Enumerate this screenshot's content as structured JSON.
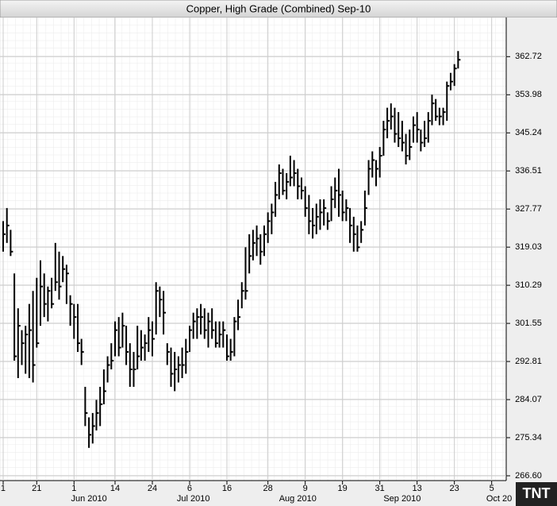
{
  "chart_data": {
    "type": "ohlc",
    "title": "Copper, High Grade (Combined) Sep-10",
    "logo": "TNT",
    "color": "#000000",
    "grid": true,
    "ylim": [
      265.5,
      371.7
    ],
    "yticks": [
      {
        "value": 266.6,
        "label": "266.60"
      },
      {
        "value": 275.34,
        "label": "275.34"
      },
      {
        "value": 284.07,
        "label": "284.07"
      },
      {
        "value": 292.81,
        "label": "292.81"
      },
      {
        "value": 301.55,
        "label": "301.55"
      },
      {
        "value": 310.29,
        "label": "310.29"
      },
      {
        "value": 319.03,
        "label": "319.03"
      },
      {
        "value": 327.77,
        "label": "327.77"
      },
      {
        "value": 336.51,
        "label": "336.51"
      },
      {
        "value": 345.24,
        "label": "345.24"
      },
      {
        "value": 353.98,
        "label": "353.98"
      },
      {
        "value": 362.72,
        "label": "362.72"
      }
    ],
    "xlim": [
      -0.85,
      134.9
    ],
    "xticks": [
      {
        "value": 0,
        "label": "1"
      },
      {
        "value": 9,
        "label": "21"
      },
      {
        "value": 19,
        "label": "1"
      },
      {
        "value": 30,
        "label": "14"
      },
      {
        "value": 40,
        "label": "24"
      },
      {
        "value": 50,
        "label": "6"
      },
      {
        "value": 60,
        "label": "16"
      },
      {
        "value": 71,
        "label": "28"
      },
      {
        "value": 81,
        "label": "9"
      },
      {
        "value": 91,
        "label": "19"
      },
      {
        "value": 101,
        "label": "31"
      },
      {
        "value": 111,
        "label": "13"
      },
      {
        "value": 121,
        "label": "23"
      },
      {
        "value": 131,
        "label": "5"
      }
    ],
    "month_labels": [
      {
        "value": 23,
        "label": "Jun 2010"
      },
      {
        "value": 51,
        "label": "Jul 2010"
      },
      {
        "value": 79,
        "label": "Aug 2010"
      },
      {
        "value": 107,
        "label": "Sep 2010"
      },
      {
        "value": 133,
        "label": "Oct 20"
      }
    ],
    "x": [
      0,
      1,
      2,
      3,
      4,
      5,
      6,
      7,
      8,
      9,
      10,
      11,
      12,
      13,
      14,
      15,
      16,
      17,
      18,
      19,
      20,
      21,
      22,
      23,
      24,
      25,
      26,
      27,
      28,
      29,
      30,
      31,
      32,
      33,
      34,
      35,
      36,
      37,
      38,
      39,
      40,
      41,
      42,
      43,
      44,
      45,
      46,
      47,
      48,
      49,
      50,
      51,
      52,
      53,
      54,
      55,
      56,
      57,
      58,
      59,
      60,
      61,
      62,
      63,
      64,
      65,
      66,
      67,
      68,
      69,
      70,
      71,
      72,
      73,
      74,
      75,
      76,
      77,
      78,
      79,
      80,
      81,
      82,
      83,
      84,
      85,
      86,
      87,
      88,
      89,
      90,
      91,
      92,
      93,
      94,
      95,
      96,
      97,
      98,
      99,
      100,
      101,
      102,
      103,
      104,
      105,
      106,
      107,
      108,
      109,
      110,
      111,
      112,
      113,
      114,
      115,
      116,
      117,
      118,
      119,
      120,
      121,
      122
    ],
    "high": [
      325,
      328,
      323,
      313,
      305,
      300,
      301,
      306,
      309,
      312,
      316,
      313,
      310,
      312,
      320,
      318,
      317,
      315,
      308,
      306,
      306,
      298,
      287,
      280,
      281,
      284,
      287,
      291,
      294,
      297,
      302,
      303,
      304,
      301,
      297,
      295,
      301,
      300,
      299,
      303,
      302,
      311,
      310,
      309,
      297,
      296,
      295,
      294,
      296,
      298,
      301,
      304,
      305,
      306,
      305,
      304,
      305,
      302,
      302,
      302,
      299,
      298,
      303,
      307,
      311,
      319,
      322,
      323,
      324,
      322,
      324,
      327,
      329,
      334,
      338,
      337,
      336,
      340,
      339,
      337,
      335,
      333,
      331,
      328,
      329,
      330,
      330,
      327,
      333,
      335,
      337,
      332,
      330,
      328,
      326,
      324,
      325,
      332,
      339,
      341,
      339,
      342,
      348,
      351,
      352,
      351,
      350,
      348,
      345,
      346,
      349,
      350,
      346,
      348,
      350,
      354,
      353,
      351,
      351,
      357,
      359,
      361,
      364
    ],
    "low": [
      318,
      320,
      317,
      293,
      289,
      292,
      290,
      289,
      288,
      296,
      301,
      303,
      302,
      305,
      309,
      307,
      311,
      306,
      301,
      298,
      295,
      292,
      278,
      273,
      274,
      277,
      278,
      283,
      288,
      291,
      294,
      294,
      296,
      292,
      287,
      287,
      291,
      293,
      293,
      295,
      294,
      299,
      303,
      299,
      292,
      287,
      286,
      288,
      289,
      290,
      295,
      298,
      298,
      299,
      298,
      296,
      298,
      296,
      296,
      296,
      293,
      293,
      294,
      300,
      305,
      307,
      313,
      316,
      317,
      315,
      317,
      320,
      322,
      326,
      330,
      331,
      330,
      333,
      333,
      330,
      330,
      326,
      322,
      321,
      322,
      323,
      324,
      323,
      325,
      328,
      326,
      325,
      325,
      320,
      318,
      318,
      320,
      324,
      331,
      335,
      333,
      335,
      340,
      344,
      346,
      343,
      342,
      341,
      338,
      339,
      343,
      343,
      341,
      342,
      343,
      347,
      348,
      347,
      347,
      348,
      355,
      356,
      360
    ],
    "close": [
      322,
      324,
      318,
      294,
      301,
      297,
      299,
      300,
      292,
      297,
      310,
      306,
      309,
      306,
      311,
      310,
      314,
      313,
      306,
      303,
      297,
      295,
      281,
      276,
      278,
      281,
      283,
      286,
      292,
      293,
      300,
      296,
      301,
      295,
      291,
      291,
      294,
      296,
      297,
      300,
      298,
      309,
      307,
      304,
      295,
      290,
      291,
      292,
      292,
      295,
      300,
      302,
      303,
      303,
      300,
      302,
      300,
      297,
      299,
      300,
      294,
      295,
      302,
      303,
      309,
      309,
      317,
      320,
      321,
      318,
      322,
      325,
      327,
      331,
      336,
      332,
      334,
      335,
      336,
      333,
      332,
      328,
      325,
      324,
      326,
      327,
      328,
      325,
      330,
      332,
      331,
      327,
      328,
      324,
      322,
      319,
      323,
      328,
      337,
      339,
      337,
      340,
      346,
      348,
      349,
      345,
      344,
      343,
      340,
      342,
      347,
      346,
      343,
      344,
      348,
      352,
      349,
      349,
      350,
      356,
      357,
      360,
      362
    ]
  }
}
